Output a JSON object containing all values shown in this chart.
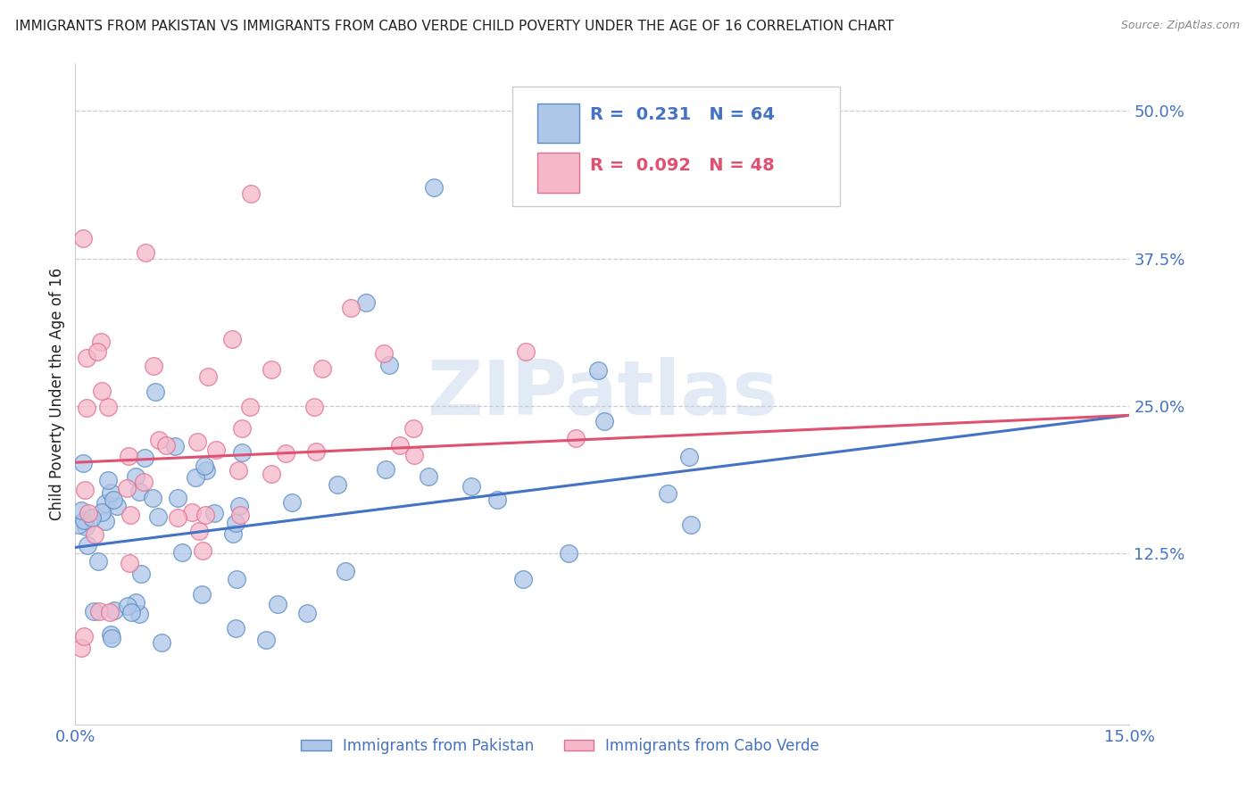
{
  "title": "IMMIGRANTS FROM PAKISTAN VS IMMIGRANTS FROM CABO VERDE CHILD POVERTY UNDER THE AGE OF 16 CORRELATION CHART",
  "source": "Source: ZipAtlas.com",
  "ylabel": "Child Poverty Under the Age of 16",
  "xlim": [
    0.0,
    0.15
  ],
  "ylim": [
    -0.02,
    0.54
  ],
  "ytick_positions": [
    0.125,
    0.25,
    0.375,
    0.5
  ],
  "ytick_labels": [
    "12.5%",
    "25.0%",
    "37.5%",
    "50.0%"
  ],
  "xtick_positions": [
    0.0,
    0.15
  ],
  "xtick_labels": [
    "0.0%",
    "15.0%"
  ],
  "pakistan_R": 0.231,
  "pakistan_N": 64,
  "caboverde_R": 0.092,
  "caboverde_N": 48,
  "pakistan_color": "#aec6e8",
  "pakistan_edge_color": "#5b8ec4",
  "pakistan_line_color": "#4472c4",
  "caboverde_color": "#f5b8ca",
  "caboverde_edge_color": "#e07090",
  "caboverde_line_color": "#e05070",
  "legend_label_pakistan": "Immigrants from Pakistan",
  "legend_label_caboverde": "Immigrants from Cabo Verde",
  "pak_line_x0": 0.0,
  "pak_line_y0": 0.13,
  "pak_line_x1": 0.15,
  "pak_line_y1": 0.242,
  "cv_line_x0": 0.0,
  "cv_line_y0": 0.202,
  "cv_line_x1": 0.15,
  "cv_line_y1": 0.242,
  "watermark": "ZIPatlas",
  "background_color": "#ffffff",
  "grid_color": "#cccccc",
  "title_color": "#222222",
  "tick_color": "#4472c4"
}
